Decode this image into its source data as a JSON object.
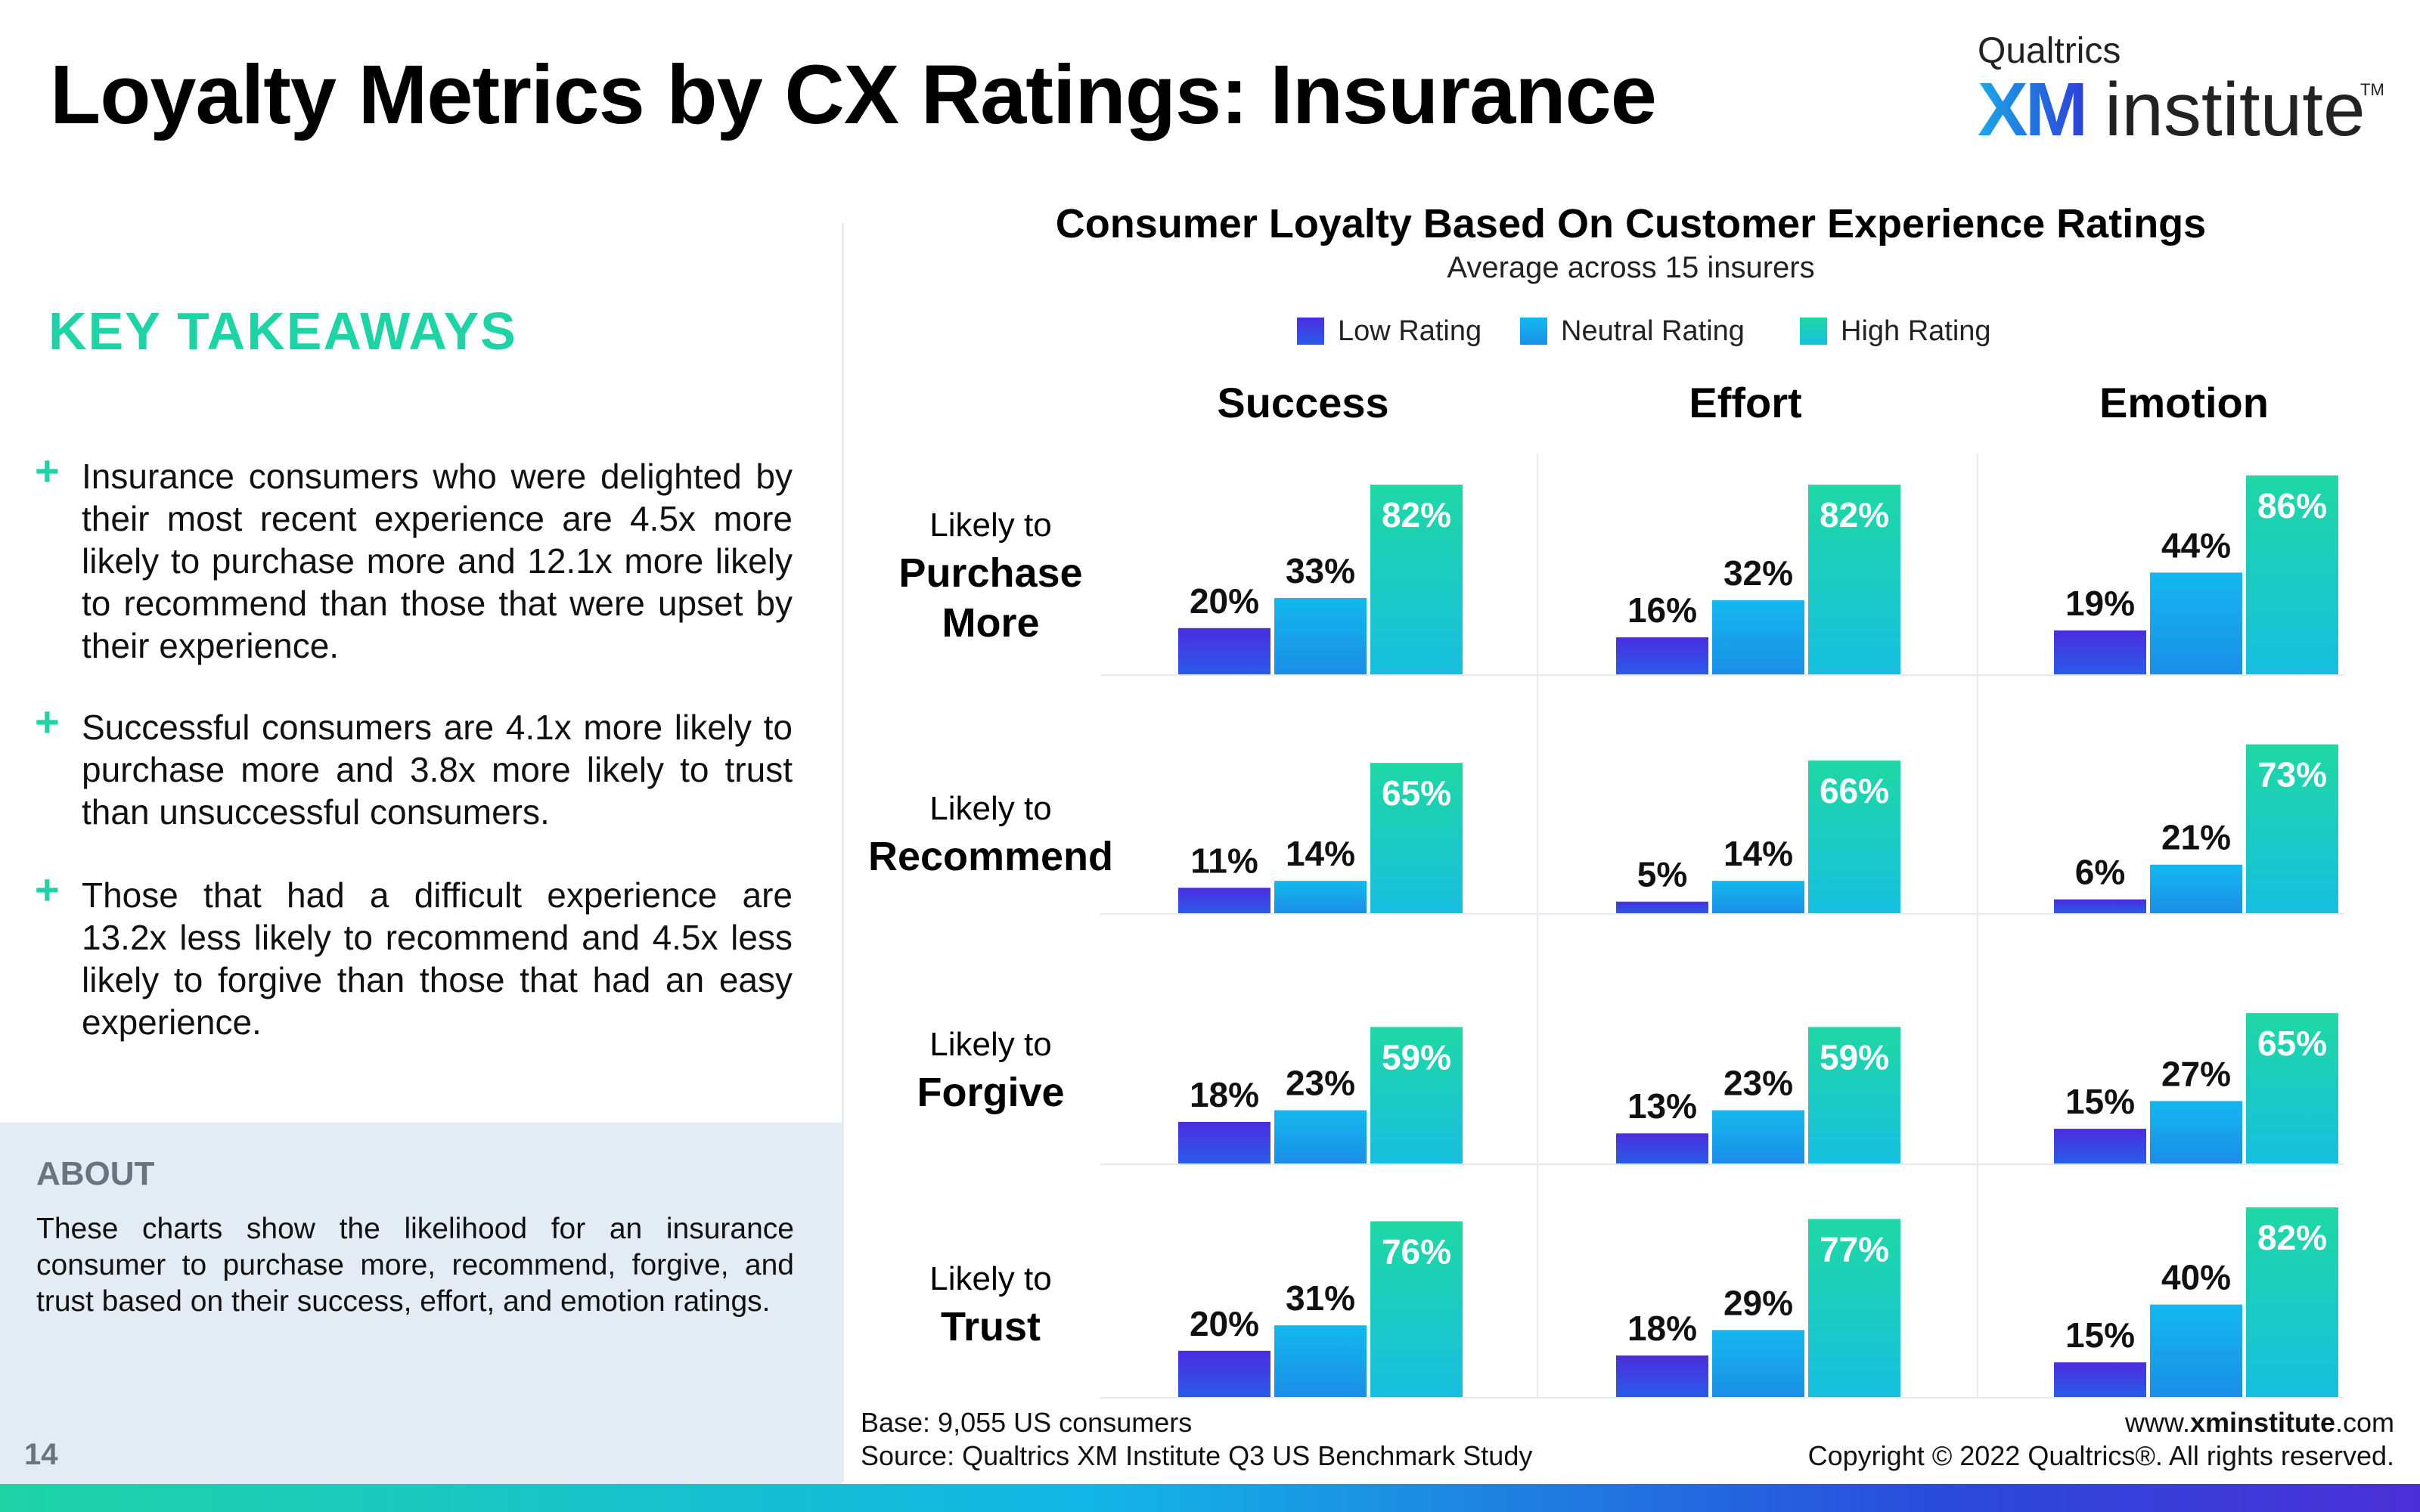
{
  "header": {
    "title": "Loyalty Metrics by CX Ratings: Insurance",
    "logo": {
      "brand": "Qualtrics",
      "mark": "XM",
      "word": "institute",
      "tm": "TM"
    }
  },
  "takeaways": {
    "heading": "KEY TAKEAWAYS",
    "bullet_icon": "+",
    "items": [
      "Insurance consumers who were delighted by their most recent experience are 4.5x more likely to purchase more and 12.1x more likely to recommend than those that were upset by their experience.",
      "Successful consumers are 4.1x more likely to purchase more and 3.8x more likely to trust than unsuccessful consumers.",
      "Those that had a difficult experience are 13.2x less likely to recommend and 4.5x less likely to forgive than those that had an easy experience."
    ]
  },
  "about": {
    "heading": "ABOUT",
    "text": "These charts show the likelihood for an insurance consumer to purchase more, recommend, forgive, and trust based on their success, effort, and emotion ratings."
  },
  "page_number": "14",
  "footer": {
    "base": "Base: 9,055 US consumers",
    "source": "Source: Qualtrics XM Institute Q3 US Benchmark Study",
    "url_prefix": "www.",
    "url_bold": "xminstitute",
    "url_suffix": ".com",
    "copyright": "Copyright © 2022 Qualtrics®. All rights reserved."
  },
  "colors": {
    "low": [
      "#4a2de0",
      "#2a5be8"
    ],
    "neutral": [
      "#14b8ee",
      "#1a8ee8"
    ],
    "high": [
      "#1fd8a4",
      "#16bfe0"
    ],
    "accent": "#1fd3a6"
  },
  "chart_data": {
    "type": "bar",
    "title": "Consumer Loyalty Based On Customer Experience Ratings",
    "subtitle": "Average across 15 insurers",
    "legend": [
      "Low Rating",
      "Neutral Rating",
      "High Rating"
    ],
    "legend_position": "top-center",
    "value_suffix": "%",
    "ylim": [
      0,
      100
    ],
    "columns": [
      "Success",
      "Effort",
      "Emotion"
    ],
    "rows": [
      {
        "small": "Likely to",
        "label": "Purchase More"
      },
      {
        "small": "Likely to",
        "label": "Recommend"
      },
      {
        "small": "Likely to",
        "label": "Forgive"
      },
      {
        "small": "Likely to",
        "label": "Trust"
      }
    ],
    "values": [
      [
        [
          20,
          33,
          82
        ],
        [
          16,
          32,
          82
        ],
        [
          19,
          44,
          86
        ]
      ],
      [
        [
          11,
          14,
          65
        ],
        [
          5,
          14,
          66
        ],
        [
          6,
          21,
          73
        ]
      ],
      [
        [
          18,
          23,
          59
        ],
        [
          13,
          23,
          59
        ],
        [
          15,
          27,
          65
        ]
      ],
      [
        [
          20,
          31,
          76
        ],
        [
          18,
          29,
          77
        ],
        [
          15,
          40,
          82
        ]
      ]
    ]
  }
}
